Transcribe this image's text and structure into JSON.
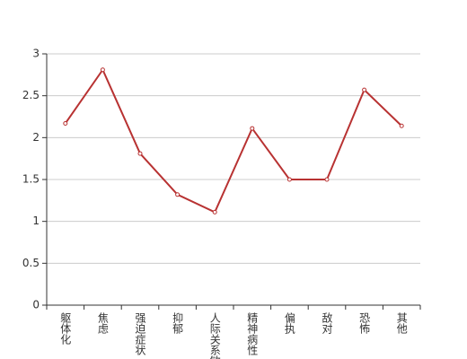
{
  "chart_data": {
    "type": "line",
    "categories": [
      "躯体化",
      "焦虑",
      "强迫症状",
      "抑郁",
      "人际关系敏感",
      "精神病性",
      "偏执",
      "敌对",
      "恐怖",
      "其他"
    ],
    "series": [
      {
        "color": "#b83232",
        "values": [
          2.17,
          2.81,
          1.81,
          1.32,
          1.11,
          2.11,
          1.5,
          1.5,
          2.57,
          2.14
        ]
      }
    ],
    "ylim": [
      0,
      3
    ],
    "yticks": [
      0,
      0.5,
      1,
      1.5,
      2,
      2.5,
      3
    ],
    "grid": true
  }
}
